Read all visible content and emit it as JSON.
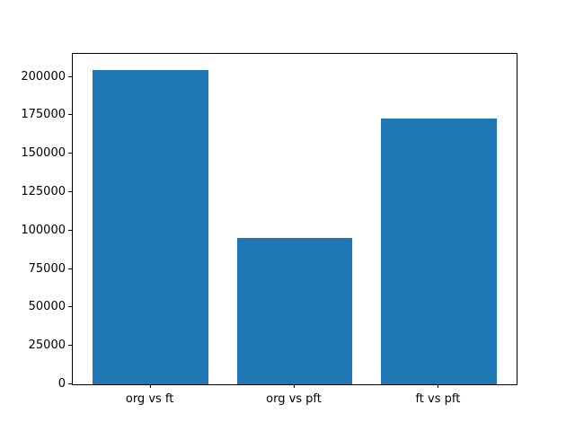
{
  "chart_data": {
    "type": "bar",
    "categories": [
      "org vs ft",
      "org vs pft",
      "ft vs pft"
    ],
    "values": [
      204500,
      95000,
      173000
    ],
    "title": "",
    "xlabel": "",
    "ylabel": "",
    "ylim": [
      0,
      215000
    ],
    "yticks": [
      0,
      25000,
      50000,
      75000,
      100000,
      125000,
      150000,
      175000,
      200000
    ],
    "xlim": [
      -0.54,
      2.54
    ],
    "bar_positions": [
      0,
      1,
      2
    ],
    "bar_width": 0.8,
    "grid": false,
    "legend": null
  },
  "colors": {
    "bar": "#1f77b4",
    "frame": "#000000",
    "text": "#000000",
    "background": "#ffffff"
  }
}
